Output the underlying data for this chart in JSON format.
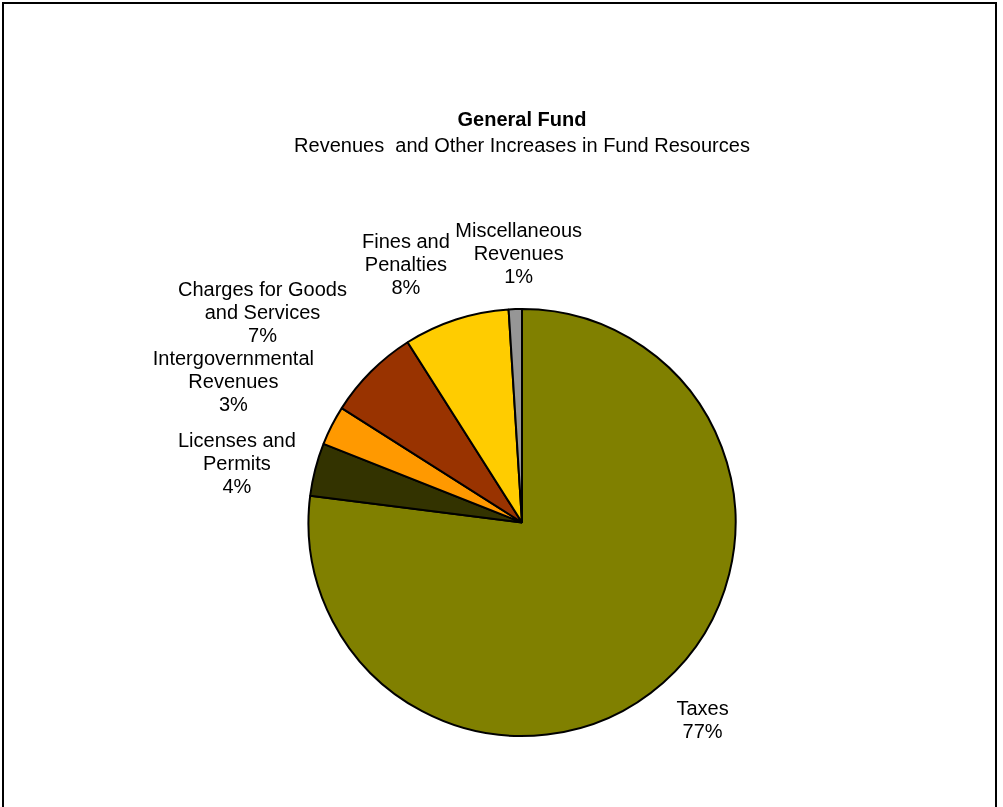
{
  "chart_data": {
    "type": "pie",
    "title": "General Fund",
    "subtitle": "Revenues  and Other Increases in Fund Resources",
    "categories": [
      "Taxes",
      "Licenses and Permits",
      "Intergovernmental Revenues",
      "Charges for Goods and Services",
      "Fines and Penalties",
      "Miscellaneous Revenues"
    ],
    "values": [
      77,
      4,
      3,
      7,
      8,
      1
    ],
    "value_labels": [
      "77%",
      "4%",
      "3%",
      "7%",
      "8%",
      "1%"
    ],
    "colors": [
      "#808000",
      "#333300",
      "#ff9900",
      "#993300",
      "#ffcc00",
      "#969696"
    ],
    "legend": false
  }
}
